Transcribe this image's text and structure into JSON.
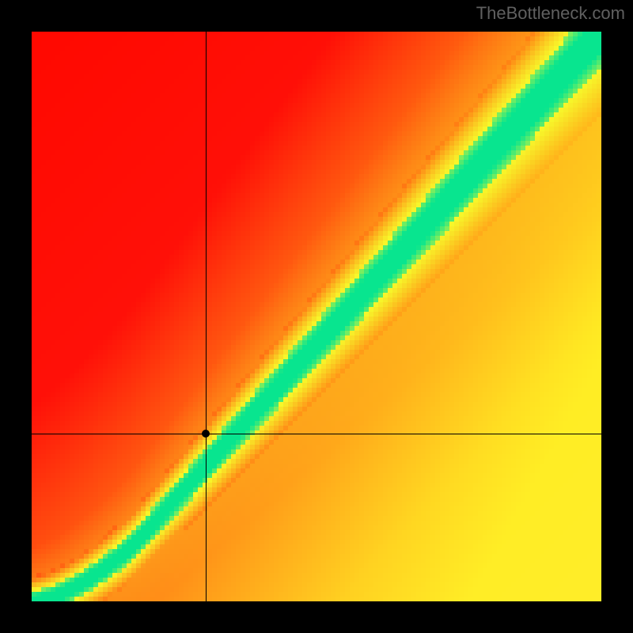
{
  "attribution": "TheBottleneck.com",
  "layout": {
    "canvas_size": 800,
    "plot_inset": 40,
    "plot_size": 720,
    "background_color": "#000000",
    "attribution_color": "#606060",
    "attribution_fontsize": 22,
    "attribution_fontfamily": "Arial"
  },
  "heatmap": {
    "type": "heatmap",
    "grid_n": 120,
    "pixelated": true,
    "axis_direction": {
      "x_origin": "left",
      "y_origin": "bottom"
    },
    "ideal_curve": {
      "comment": "u,v in [0,1] from bottom-left. v_ideal(u) defines the green ridge.",
      "type": "piecewise_power_then_linear",
      "u_knee": 0.18,
      "v_knee": 0.1,
      "power_below": 1.6,
      "slope_above": 1.097
    },
    "band": {
      "half_width_at_u0": 0.018,
      "half_width_at_u1": 0.06,
      "yellow_multiplier": 2.4
    },
    "background_field": {
      "comment": "warm gradient: red at top-left -> orange/yellow toward bottom-right, modulated by u and v",
      "red_corner_hue": 2,
      "yellow_corner_hue": 55,
      "sat": 1.0,
      "light_min": 0.5,
      "light_max": 0.58
    },
    "colors": {
      "green": "#08e58f",
      "yellow": "#f7f72a",
      "orange": "#ff9a1f",
      "red": "#ff2a3f"
    }
  },
  "crosshair": {
    "u": 0.305,
    "v": 0.295,
    "line_color": "#000000",
    "line_width": 1,
    "dot_color": "#000000",
    "dot_diameter": 10
  }
}
